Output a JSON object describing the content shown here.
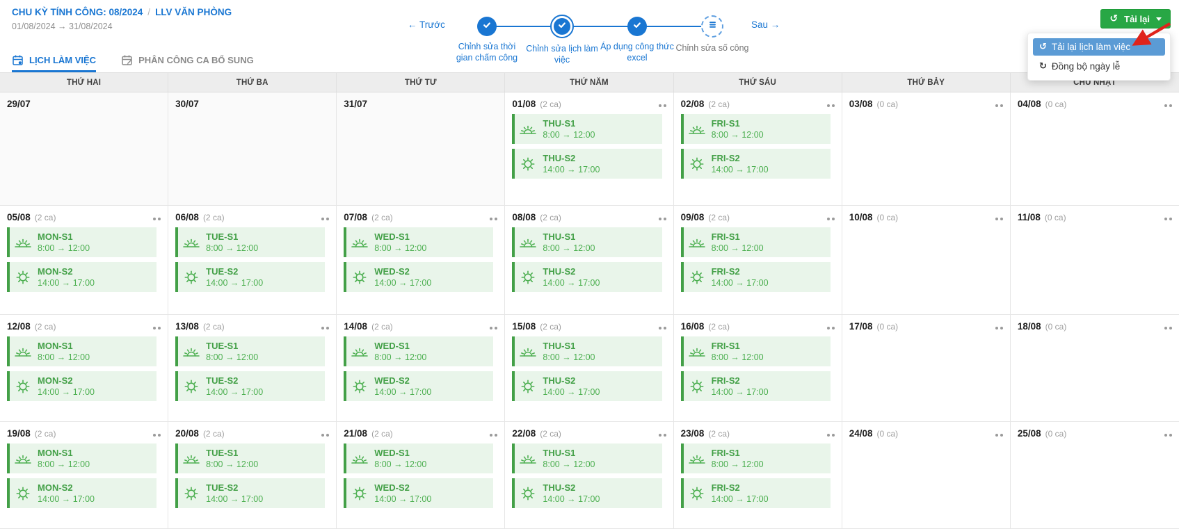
{
  "header": {
    "cycle_label": "CHU KỲ TÍNH CÔNG: 08/2024",
    "separator": "/",
    "unit_label": "LLV VĂN PHÒNG",
    "date_range": "01/08/2024 → 31/08/2024"
  },
  "stepper": {
    "prev_label": "← Trước",
    "next_label": "Sau →",
    "steps": [
      {
        "label": "Chỉnh sửa thời gian chấm công",
        "state": "done"
      },
      {
        "label": "Chỉnh sửa lịch làm việc",
        "state": "current"
      },
      {
        "label": "Áp dụng công thức excel",
        "state": "done"
      },
      {
        "label": "Chỉnh sửa số công",
        "state": "pending"
      }
    ]
  },
  "reload": {
    "button_label": "Tải lại",
    "menu_items": [
      {
        "label": "Tải lại lịch làm việc",
        "icon": "reload-icon",
        "highlighted": true
      },
      {
        "label": "Đồng bộ ngày lễ",
        "icon": "sync-icon",
        "highlighted": false
      }
    ]
  },
  "tabs": [
    {
      "label": "LỊCH LÀM VIỆC",
      "icon": "calendar-gear-icon",
      "active": true
    },
    {
      "label": "PHÂN CÔNG CA BỔ SUNG",
      "icon": "calendar-edit-icon",
      "active": false
    }
  ],
  "calendar": {
    "weekday_headers": [
      "THỨ HAI",
      "THỨ BA",
      "THỨ TƯ",
      "THỨ NĂM",
      "THỨ SÁU",
      "THỨ BẢY",
      "CHỦ NHẬT"
    ],
    "weeks": [
      [
        {
          "date": "29/07",
          "out_of_month": true,
          "count": "",
          "shifts": []
        },
        {
          "date": "30/07",
          "out_of_month": true,
          "count": "",
          "shifts": []
        },
        {
          "date": "31/07",
          "out_of_month": true,
          "count": "",
          "shifts": []
        },
        {
          "date": "01/08",
          "count": "(2 ca)",
          "shifts": [
            {
              "name": "THU-S1",
              "time": "8:00 → 12:00",
              "icon": "sunrise-icon"
            },
            {
              "name": "THU-S2",
              "time": "14:00 → 17:00",
              "icon": "sun-icon"
            }
          ]
        },
        {
          "date": "02/08",
          "count": "(2 ca)",
          "shifts": [
            {
              "name": "FRI-S1",
              "time": "8:00 → 12:00",
              "icon": "sunrise-icon"
            },
            {
              "name": "FRI-S2",
              "time": "14:00 → 17:00",
              "icon": "sun-icon"
            }
          ]
        },
        {
          "date": "03/08",
          "count": "(0 ca)",
          "shifts": []
        },
        {
          "date": "04/08",
          "count": "(0 ca)",
          "shifts": []
        }
      ],
      [
        {
          "date": "05/08",
          "count": "(2 ca)",
          "shifts": [
            {
              "name": "MON-S1",
              "time": "8:00 → 12:00",
              "icon": "sunrise-icon"
            },
            {
              "name": "MON-S2",
              "time": "14:00 → 17:00",
              "icon": "sun-icon"
            }
          ]
        },
        {
          "date": "06/08",
          "count": "(2 ca)",
          "shifts": [
            {
              "name": "TUE-S1",
              "time": "8:00 → 12:00",
              "icon": "sunrise-icon"
            },
            {
              "name": "TUE-S2",
              "time": "14:00 → 17:00",
              "icon": "sun-icon"
            }
          ]
        },
        {
          "date": "07/08",
          "count": "(2 ca)",
          "shifts": [
            {
              "name": "WED-S1",
              "time": "8:00 → 12:00",
              "icon": "sunrise-icon"
            },
            {
              "name": "WED-S2",
              "time": "14:00 → 17:00",
              "icon": "sun-icon"
            }
          ]
        },
        {
          "date": "08/08",
          "count": "(2 ca)",
          "shifts": [
            {
              "name": "THU-S1",
              "time": "8:00 → 12:00",
              "icon": "sunrise-icon"
            },
            {
              "name": "THU-S2",
              "time": "14:00 → 17:00",
              "icon": "sun-icon"
            }
          ]
        },
        {
          "date": "09/08",
          "count": "(2 ca)",
          "shifts": [
            {
              "name": "FRI-S1",
              "time": "8:00 → 12:00",
              "icon": "sunrise-icon"
            },
            {
              "name": "FRI-S2",
              "time": "14:00 → 17:00",
              "icon": "sun-icon"
            }
          ]
        },
        {
          "date": "10/08",
          "count": "(0 ca)",
          "shifts": []
        },
        {
          "date": "11/08",
          "count": "(0 ca)",
          "shifts": []
        }
      ],
      [
        {
          "date": "12/08",
          "count": "(2 ca)",
          "shifts": [
            {
              "name": "MON-S1",
              "time": "8:00 → 12:00",
              "icon": "sunrise-icon"
            },
            {
              "name": "MON-S2",
              "time": "14:00 → 17:00",
              "icon": "sun-icon"
            }
          ]
        },
        {
          "date": "13/08",
          "count": "(2 ca)",
          "shifts": [
            {
              "name": "TUE-S1",
              "time": "8:00 → 12:00",
              "icon": "sunrise-icon"
            },
            {
              "name": "TUE-S2",
              "time": "14:00 → 17:00",
              "icon": "sun-icon"
            }
          ]
        },
        {
          "date": "14/08",
          "count": "(2 ca)",
          "shifts": [
            {
              "name": "WED-S1",
              "time": "8:00 → 12:00",
              "icon": "sunrise-icon"
            },
            {
              "name": "WED-S2",
              "time": "14:00 → 17:00",
              "icon": "sun-icon"
            }
          ]
        },
        {
          "date": "15/08",
          "count": "(2 ca)",
          "shifts": [
            {
              "name": "THU-S1",
              "time": "8:00 → 12:00",
              "icon": "sunrise-icon"
            },
            {
              "name": "THU-S2",
              "time": "14:00 → 17:00",
              "icon": "sun-icon"
            }
          ]
        },
        {
          "date": "16/08",
          "count": "(2 ca)",
          "shifts": [
            {
              "name": "FRI-S1",
              "time": "8:00 → 12:00",
              "icon": "sunrise-icon"
            },
            {
              "name": "FRI-S2",
              "time": "14:00 → 17:00",
              "icon": "sun-icon"
            }
          ]
        },
        {
          "date": "17/08",
          "count": "(0 ca)",
          "shifts": []
        },
        {
          "date": "18/08",
          "count": "(0 ca)",
          "shifts": []
        }
      ],
      [
        {
          "date": "19/08",
          "count": "(2 ca)",
          "shifts": [
            {
              "name": "MON-S1",
              "time": "8:00 → 12:00",
              "icon": "sunrise-icon"
            },
            {
              "name": "MON-S2",
              "time": "14:00 → 17:00",
              "icon": "sun-icon"
            }
          ]
        },
        {
          "date": "20/08",
          "count": "(2 ca)",
          "shifts": [
            {
              "name": "TUE-S1",
              "time": "8:00 → 12:00",
              "icon": "sunrise-icon"
            },
            {
              "name": "TUE-S2",
              "time": "14:00 → 17:00",
              "icon": "sun-icon"
            }
          ]
        },
        {
          "date": "21/08",
          "count": "(2 ca)",
          "shifts": [
            {
              "name": "WED-S1",
              "time": "8:00 → 12:00",
              "icon": "sunrise-icon"
            },
            {
              "name": "WED-S2",
              "time": "14:00 → 17:00",
              "icon": "sun-icon"
            }
          ]
        },
        {
          "date": "22/08",
          "count": "(2 ca)",
          "shifts": [
            {
              "name": "THU-S1",
              "time": "8:00 → 12:00",
              "icon": "sunrise-icon"
            },
            {
              "name": "THU-S2",
              "time": "14:00 → 17:00",
              "icon": "sun-icon"
            }
          ]
        },
        {
          "date": "23/08",
          "count": "(2 ca)",
          "shifts": [
            {
              "name": "FRI-S1",
              "time": "8:00 → 12:00",
              "icon": "sunrise-icon"
            },
            {
              "name": "FRI-S2",
              "time": "14:00 → 17:00",
              "icon": "sun-icon"
            }
          ]
        },
        {
          "date": "24/08",
          "count": "(0 ca)",
          "shifts": []
        },
        {
          "date": "25/08",
          "count": "(0 ca)",
          "shifts": []
        }
      ]
    ]
  },
  "colors": {
    "accent_blue": "#1976d2",
    "success_green": "#28a745",
    "shift_green": "#43a047",
    "shift_bg": "#e9f5ea",
    "menu_highlight_blue": "#5b9bd5",
    "annotation_red": "#df231b"
  }
}
